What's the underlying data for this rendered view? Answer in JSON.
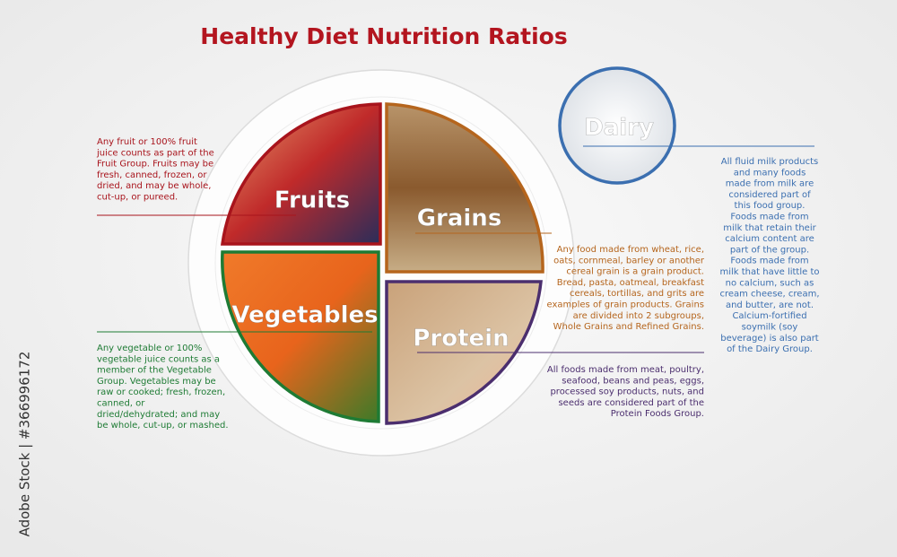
{
  "title": "Healthy Diet Nutrition Ratios",
  "sections": [
    {
      "label": "Fruits",
      "description": [
        "Any fruit or 100% fruit",
        "juice counts as part of the",
        "Fruit Group. Fruits may be",
        "fresh, canned, frozen, or",
        "dried, and may be whole,",
        "cut-up, or pureed."
      ]
    },
    {
      "label": "Grains",
      "description": [
        "Any food made from wheat, rice,",
        "oats, cornmeal, barley or another",
        "cereal grain is a grain product.",
        "Bread, pasta, oatmeal, breakfast",
        "cereals, tortillas, and grits are",
        "examples of grain products. Grains",
        "are divided into 2 subgroups,",
        "Whole Grains and Refined Grains."
      ]
    },
    {
      "label": "Vegetables",
      "description": [
        "Any vegetable or 100%",
        "vegetable juice counts as a",
        "member of the Vegetable",
        "Group. Vegetables may be",
        "raw or cooked; fresh, frozen,",
        "canned, or",
        "dried/dehydrated; and may",
        "be whole, cut-up, or mashed."
      ]
    },
    {
      "label": "Protein",
      "description": [
        "All foods made from meat, poultry,",
        "seafood, beans and peas, eggs,",
        "processed soy products, nuts, and",
        "seeds are considered part of the",
        "Protein Foods Group."
      ]
    },
    {
      "label": "Dairy",
      "description": [
        "All fluid milk products",
        "and many foods",
        "made from milk are",
        "considered part of",
        "this food group.",
        "Foods made from",
        "milk that retain their",
        "calcium content are",
        "part of the group.",
        "Foods made from",
        "milk that have little to",
        "no calcium, such as",
        "cream cheese, cream,",
        "and butter, are not.",
        "Calcium-fortified",
        "soymilk (soy",
        "beverage) is also part",
        "of the Dairy Group."
      ]
    }
  ],
  "watermark": "Adobe Stock | #366996172"
}
